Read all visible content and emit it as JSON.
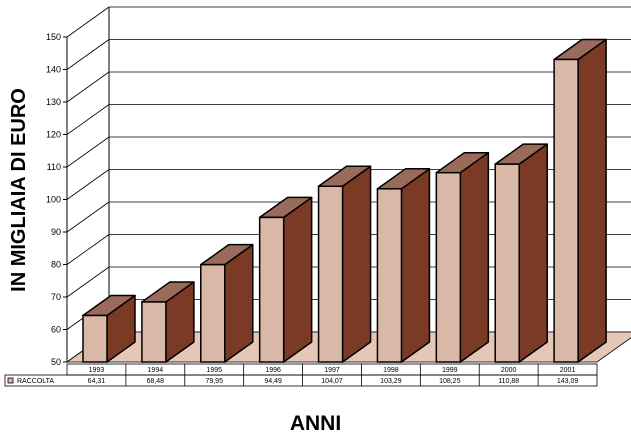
{
  "chart_data": {
    "type": "bar",
    "title": "",
    "xlabel": "ANNI",
    "ylabel": "IN MIGLIAIA DI EURO",
    "ylim": [
      50,
      150
    ],
    "yticks": [
      50,
      60,
      70,
      80,
      90,
      100,
      110,
      120,
      130,
      140,
      150
    ],
    "categories": [
      "1993",
      "1994",
      "1995",
      "1996",
      "1997",
      "1998",
      "1999",
      "2000",
      "2001"
    ],
    "series": [
      {
        "name": "RACCOLTA",
        "values": [
          64.31,
          68.48,
          79.95,
          94.49,
          104.07,
          103.29,
          108.25,
          110.88,
          143.09
        ],
        "value_labels": [
          "64,31",
          "68,48",
          "79,95",
          "94,49",
          "104,07",
          "103,29",
          "108,25",
          "110,88",
          "143,09"
        ]
      }
    ],
    "grid": true,
    "data_table": true,
    "colors": {
      "bar_front": "#d9b8a8",
      "bar_side": "#7a3a24",
      "bar_top": "#9a6a5a",
      "floor": "#e6c6b6",
      "outline": "#000000"
    }
  }
}
